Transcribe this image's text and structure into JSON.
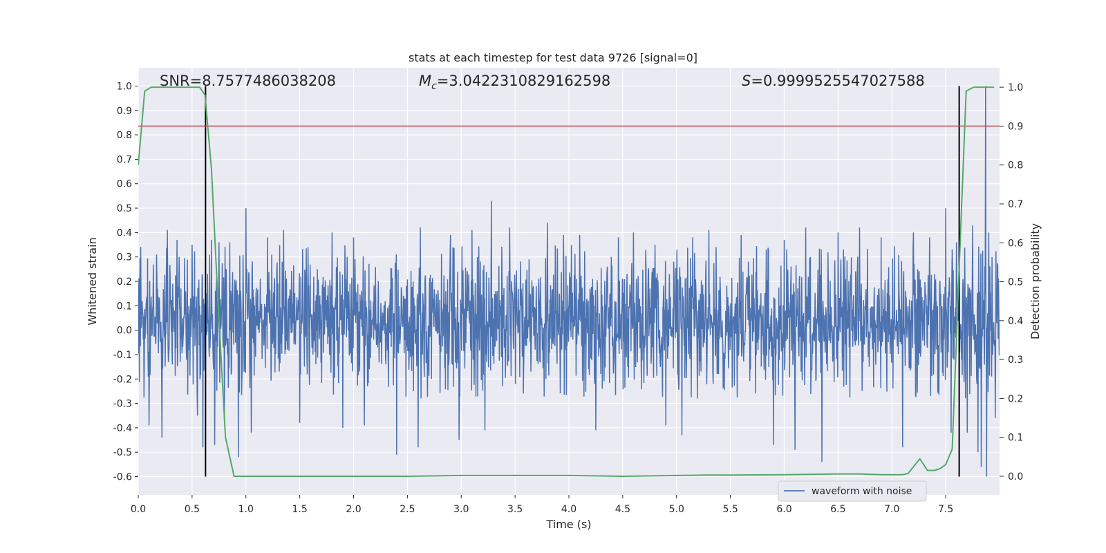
{
  "chart_data": {
    "type": "line",
    "title": "stats at each timestep for test data 9726 [signal=0]",
    "xlabel": "Time (s)",
    "ylabel": "Whitened strain",
    "ylabel_right": "Detection probability",
    "xlim": [
      0.0,
      8.0
    ],
    "ylim": [
      -0.675,
      1.075
    ],
    "ylim_right": [
      -0.048,
      1.05
    ],
    "x_ticks": [
      "0.0",
      "0.5",
      "1.0",
      "1.5",
      "2.0",
      "2.5",
      "3.0",
      "3.5",
      "4.0",
      "4.5",
      "5.0",
      "5.5",
      "6.0",
      "6.5",
      "7.0",
      "7.5"
    ],
    "x_tick_values": [
      0.0,
      0.5,
      1.0,
      1.5,
      2.0,
      2.5,
      3.0,
      3.5,
      4.0,
      4.5,
      5.0,
      5.5,
      6.0,
      6.5,
      7.0,
      7.5
    ],
    "y_ticks": [
      "1.0",
      "0.9",
      "0.8",
      "0.7",
      "0.6",
      "0.5",
      "0.4",
      "0.3",
      "0.2",
      "0.1",
      "0.0",
      "-0.1",
      "-0.2",
      "-0.3",
      "-0.4",
      "-0.5",
      "-0.6"
    ],
    "y_tick_values": [
      1.0,
      0.9,
      0.8,
      0.7,
      0.6,
      0.5,
      0.4,
      0.3,
      0.2,
      0.1,
      0.0,
      -0.1,
      -0.2,
      -0.3,
      -0.4,
      -0.5,
      -0.6
    ],
    "y_ticks_right": [
      "1.0",
      "0.9",
      "0.8",
      "0.7",
      "0.6",
      "0.5",
      "0.4",
      "0.3",
      "0.2",
      "0.1",
      "0.0"
    ],
    "y_tick_values_right": [
      1.0,
      0.9,
      0.8,
      0.7,
      0.6,
      0.5,
      0.4,
      0.3,
      0.2,
      0.1,
      0.0
    ],
    "grid": true,
    "legend": {
      "placement": "lower-right",
      "entries": [
        "waveform with noise"
      ]
    },
    "annotations": {
      "snr": "SNR=8.7577486038208",
      "mc_symbol": "M",
      "mc_subscript": "c",
      "mc_value": "=3.0422310829162598",
      "s_symbol": "S",
      "s_value": "=0.9999525547027588"
    },
    "series": [
      {
        "name": "waveform with noise",
        "color": "#4c72b0",
        "style": "noise",
        "x_range": [
          0.0,
          8.0
        ],
        "dense_band": [
          -0.13,
          0.2
        ],
        "typical_peak_max": 0.35,
        "typical_peak_min": -0.32,
        "spikes": [
          [
            0.1,
            -0.39
          ],
          [
            0.17,
            0.31
          ],
          [
            0.22,
            -0.44
          ],
          [
            0.27,
            0.41
          ],
          [
            0.36,
            0.37
          ],
          [
            0.5,
            0.35
          ],
          [
            0.55,
            -0.35
          ],
          [
            0.6,
            -0.48
          ],
          [
            0.68,
            0.37
          ],
          [
            0.71,
            -0.47
          ],
          [
            0.75,
            0.36
          ],
          [
            0.8,
            -0.37
          ],
          [
            0.85,
            0.36
          ],
          [
            0.93,
            -0.52
          ],
          [
            1.0,
            0.5
          ],
          [
            1.05,
            -0.42
          ],
          [
            1.2,
            0.38
          ],
          [
            1.35,
            0.41
          ],
          [
            1.5,
            -0.38
          ],
          [
            1.8,
            0.4
          ],
          [
            1.9,
            -0.4
          ],
          [
            2.0,
            0.38
          ],
          [
            2.1,
            -0.39
          ],
          [
            2.4,
            -0.51
          ],
          [
            2.6,
            -0.48
          ],
          [
            2.62,
            0.42
          ],
          [
            2.9,
            0.39
          ],
          [
            2.98,
            -0.45
          ],
          [
            3.1,
            0.41
          ],
          [
            3.22,
            -0.41
          ],
          [
            3.28,
            0.53
          ],
          [
            3.45,
            0.42
          ],
          [
            3.8,
            0.44
          ],
          [
            3.95,
            0.39
          ],
          [
            4.1,
            0.39
          ],
          [
            4.25,
            -0.41
          ],
          [
            4.46,
            0.38
          ],
          [
            4.6,
            0.4
          ],
          [
            4.8,
            0.35
          ],
          [
            4.9,
            -0.39
          ],
          [
            5.05,
            -0.43
          ],
          [
            5.15,
            0.38
          ],
          [
            5.3,
            0.41
          ],
          [
            5.6,
            0.39
          ],
          [
            5.9,
            -0.47
          ],
          [
            6.0,
            0.37
          ],
          [
            6.1,
            -0.49
          ],
          [
            6.2,
            0.42
          ],
          [
            6.35,
            -0.54
          ],
          [
            6.5,
            0.4
          ],
          [
            6.7,
            0.42
          ],
          [
            6.9,
            0.38
          ],
          [
            7.1,
            -0.48
          ],
          [
            7.2,
            0.4
          ],
          [
            7.35,
            0.38
          ],
          [
            7.5,
            0.5
          ],
          [
            7.55,
            -0.42
          ],
          [
            7.6,
            0.36
          ],
          [
            7.7,
            -0.42
          ],
          [
            7.75,
            0.43
          ],
          [
            7.8,
            -0.5
          ],
          [
            7.83,
            -0.56
          ],
          [
            7.87,
            1.0
          ],
          [
            7.88,
            -0.6
          ],
          [
            7.9,
            0.4
          ],
          [
            7.93,
            0.3
          ],
          [
            7.96,
            -0.36
          ]
        ]
      },
      {
        "name": "",
        "color": "#55a868",
        "axis": "right",
        "x": [
          0.0,
          0.06,
          0.12,
          0.18,
          0.3,
          0.5,
          0.57,
          0.62,
          0.68,
          0.74,
          0.81,
          0.89,
          1.0,
          1.5,
          2.0,
          2.5,
          3.0,
          3.5,
          4.0,
          4.5,
          5.0,
          5.3,
          5.5,
          6.0,
          6.5,
          6.7,
          6.9,
          7.1,
          7.15,
          7.26,
          7.33,
          7.4,
          7.45,
          7.5,
          7.56,
          7.62,
          7.69,
          7.76,
          7.82,
          7.9,
          7.95
        ],
        "y": [
          0.8,
          0.99,
          1.0,
          1.0,
          1.0,
          1.0,
          1.0,
          0.98,
          0.79,
          0.45,
          0.1,
          0.0,
          0.0,
          0.0,
          0.0,
          0.0,
          0.002,
          0.002,
          0.002,
          0.0,
          0.002,
          0.003,
          0.003,
          0.004,
          0.006,
          0.006,
          0.004,
          0.004,
          0.007,
          0.045,
          0.015,
          0.015,
          0.02,
          0.03,
          0.07,
          0.5,
          0.99,
          1.0,
          1.0,
          1.0,
          1.0
        ]
      }
    ],
    "threshold": {
      "color": "#c44e52",
      "axis": "right",
      "y": 0.9
    },
    "vertical_markers": {
      "color": "#000000",
      "x": [
        0.625,
        7.625
      ],
      "y_from": -0.6,
      "y_to": 1.0
    }
  }
}
